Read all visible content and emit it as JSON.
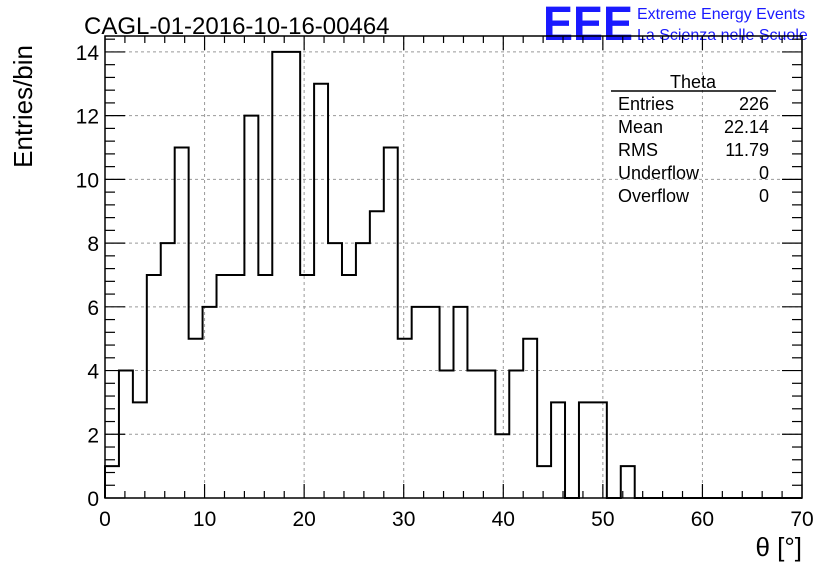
{
  "chart_data": {
    "type": "bar",
    "title": "CAGL-01-2016-10-16-00464",
    "xlabel": "θ [°]",
    "ylabel": "Entries/bin",
    "xlim": [
      0,
      70
    ],
    "ylim": [
      0,
      14.5
    ],
    "xticks": [
      0,
      10,
      20,
      30,
      40,
      50,
      60,
      70
    ],
    "yticks": [
      0,
      2,
      4,
      6,
      8,
      10,
      12,
      14
    ],
    "grid": true,
    "bin_width": 1.4,
    "bin_start": 0,
    "values": [
      1,
      4,
      3,
      7,
      8,
      11,
      5,
      6,
      7,
      7,
      12,
      7,
      14,
      14,
      7,
      13,
      8,
      7,
      8,
      9,
      11,
      5,
      6,
      6,
      4,
      6,
      4,
      4,
      2,
      4,
      5,
      1,
      3,
      0,
      3,
      3,
      0,
      1,
      0,
      0,
      0,
      0,
      0,
      0,
      0,
      0,
      0,
      0,
      0,
      0
    ],
    "color": "#000000"
  },
  "stats": {
    "name": "Theta",
    "rows": [
      {
        "label": "Entries",
        "value": "226"
      },
      {
        "label": "Mean",
        "value": "22.14"
      },
      {
        "label": "RMS",
        "value": "11.79"
      },
      {
        "label": "Underflow",
        "value": "0"
      },
      {
        "label": "Overflow",
        "value": "0"
      }
    ]
  },
  "logo": {
    "mark": "EEE",
    "line1": "Extreme Energy Events",
    "line2": "La Scienza nelle Scuole",
    "color": "#1a1aff"
  }
}
